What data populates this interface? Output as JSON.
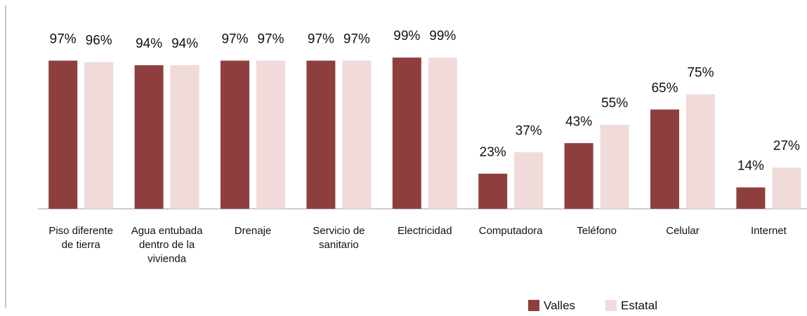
{
  "chart_data": {
    "type": "bar",
    "categories": [
      [
        "Piso diferente",
        "de tierra"
      ],
      [
        "Agua entubada",
        "dentro de la",
        "vivienda"
      ],
      [
        "Drenaje"
      ],
      [
        "Servicio de",
        "sanitario"
      ],
      [
        "Electricidad"
      ],
      [
        "Computadora"
      ],
      [
        "Teléfono"
      ],
      [
        "Celular"
      ],
      [
        "Internet"
      ]
    ],
    "series": [
      {
        "name": "Valles",
        "color": "#8e3f3d",
        "values": [
          97,
          94,
          97,
          97,
          99,
          23,
          43,
          65,
          14
        ],
        "value_labels": [
          "97%",
          "94%",
          "97%",
          "97%",
          "99%",
          "23%",
          "43%",
          "65%",
          "14%"
        ]
      },
      {
        "name": "Estatal",
        "color": "#f0dada",
        "values": [
          96,
          94,
          97,
          97,
          99,
          37,
          55,
          75,
          27
        ],
        "value_labels": [
          "96%",
          "94%",
          "97%",
          "97%",
          "99%",
          "37%",
          "55%",
          "75%",
          "27%"
        ]
      }
    ],
    "ylim": [
      0,
      100
    ],
    "legend": "bottom-right"
  }
}
